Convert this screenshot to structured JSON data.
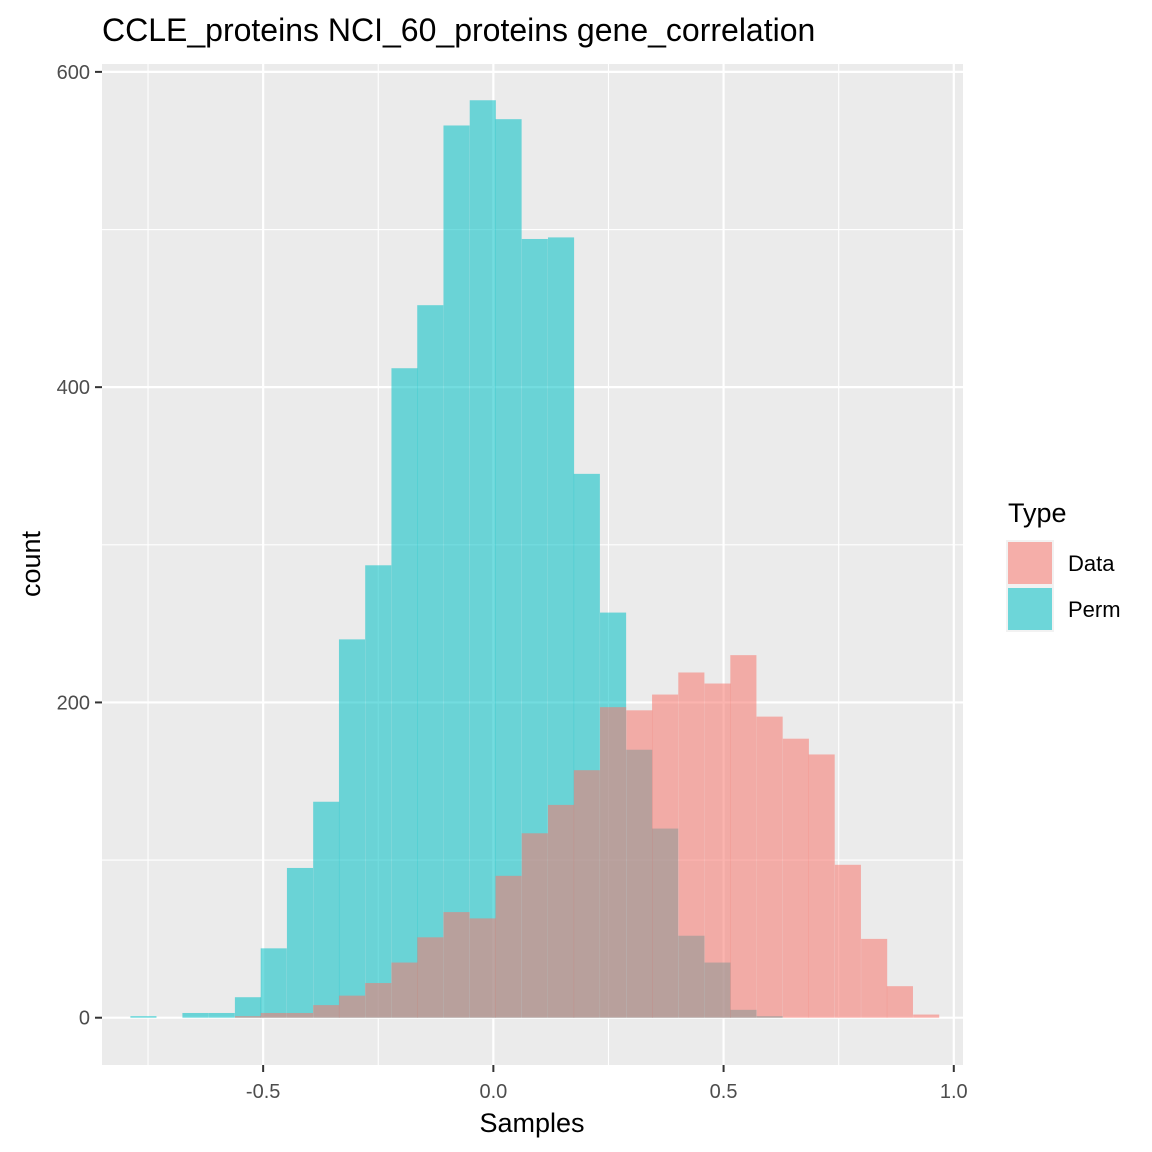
{
  "chart_data": {
    "type": "histogram",
    "title": "CCLE_proteins NCI_60_proteins gene_correlation",
    "xlabel": "Samples",
    "ylabel": "count",
    "xlim": [
      -0.85,
      1.02
    ],
    "ylim": [
      -30,
      605
    ],
    "x_ticks": [
      -0.5,
      0.0,
      0.5,
      1.0
    ],
    "x_tick_labels": [
      "-0.5",
      "0.0",
      "0.5",
      "1.0"
    ],
    "y_ticks": [
      0,
      200,
      400,
      600
    ],
    "y_tick_labels": [
      "0",
      "200",
      "400",
      "600"
    ],
    "grid": true,
    "bin_width": 0.0567,
    "legend": {
      "title": "Type",
      "position": "right",
      "entries": [
        {
          "label": "Data",
          "color": "#F8766D"
        },
        {
          "label": "Perm",
          "color": "#00BFC4"
        }
      ]
    },
    "series": [
      {
        "name": "Perm",
        "color": "#00BFC4",
        "opacity": 0.55,
        "bin_centers": [
          -0.76,
          -0.703,
          -0.647,
          -0.59,
          -0.533,
          -0.477,
          -0.42,
          -0.363,
          -0.307,
          -0.25,
          -0.193,
          -0.137,
          -0.08,
          -0.023,
          0.033,
          0.09,
          0.147,
          0.203,
          0.26,
          0.317,
          0.373,
          0.43,
          0.487,
          0.543,
          0.6,
          0.657,
          0.713
        ],
        "counts": [
          1,
          0,
          3,
          3,
          13,
          44,
          95,
          137,
          240,
          287,
          412,
          452,
          566,
          582,
          570,
          494,
          495,
          345,
          257,
          170,
          120,
          52,
          35,
          5,
          1,
          0,
          0
        ]
      },
      {
        "name": "Data",
        "color": "#F8766D",
        "opacity": 0.55,
        "bin_centers": [
          -0.533,
          -0.477,
          -0.42,
          -0.363,
          -0.307,
          -0.25,
          -0.193,
          -0.137,
          -0.08,
          -0.023,
          0.033,
          0.09,
          0.147,
          0.203,
          0.26,
          0.317,
          0.373,
          0.43,
          0.487,
          0.543,
          0.6,
          0.657,
          0.713,
          0.77,
          0.827,
          0.883,
          0.94
        ],
        "counts": [
          1,
          3,
          3,
          8,
          14,
          22,
          35,
          51,
          67,
          63,
          90,
          117,
          135,
          157,
          197,
          195,
          205,
          219,
          212,
          230,
          191,
          177,
          167,
          97,
          50,
          20,
          2
        ]
      }
    ]
  }
}
